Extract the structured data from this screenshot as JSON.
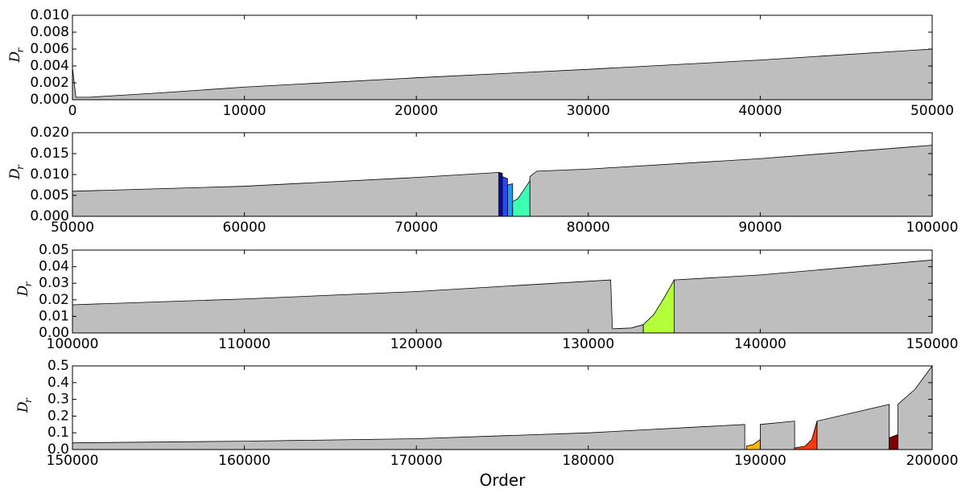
{
  "chart_data": [
    {
      "type": "area",
      "ylabel_main": "D",
      "ylabel_sub": "r",
      "xlim": [
        0,
        50000
      ],
      "ylim": [
        0,
        0.01
      ],
      "xticks": [
        0,
        10000,
        20000,
        30000,
        40000,
        50000
      ],
      "yticks": [
        {
          "value": 0,
          "label": "0.000"
        },
        {
          "value": 0.002,
          "label": "0.002"
        },
        {
          "value": 0.004,
          "label": "0.004"
        },
        {
          "value": 0.006,
          "label": "0.006"
        },
        {
          "value": 0.008,
          "label": "0.008"
        },
        {
          "value": 0.01,
          "label": "0.010"
        }
      ],
      "series": [
        {
          "color": "#bebebe",
          "x": [
            0,
            200,
            1000,
            5000,
            10000,
            20000,
            30000,
            40000,
            50000
          ],
          "values": [
            0.0038,
            0.0003,
            0.0003,
            0.0008,
            0.0015,
            0.0026,
            0.0036,
            0.0047,
            0.006
          ]
        }
      ]
    },
    {
      "type": "area",
      "ylabel_main": "D",
      "ylabel_sub": "r",
      "xlim": [
        50000,
        100000
      ],
      "ylim": [
        0,
        0.02
      ],
      "xticks": [
        50000,
        60000,
        70000,
        80000,
        90000,
        100000
      ],
      "yticks": [
        {
          "value": 0,
          "label": "0.000"
        },
        {
          "value": 0.005,
          "label": "0.005"
        },
        {
          "value": 0.01,
          "label": "0.010"
        },
        {
          "value": 0.015,
          "label": "0.015"
        },
        {
          "value": 0.02,
          "label": "0.020"
        }
      ],
      "series": [
        {
          "color": "#bebebe",
          "x": [
            50000,
            60000,
            70000,
            74800,
            75700,
            76600,
            77000,
            80000,
            90000,
            100000
          ],
          "values": [
            0.006,
            0.0072,
            0.0093,
            0.0105,
            null,
            0.0095,
            0.0108,
            0.0113,
            0.0138,
            0.017
          ]
        },
        {
          "color": "#10108a",
          "x": [
            74800,
            75000
          ],
          "values": [
            0.0105,
            0.0103
          ]
        },
        {
          "color": "#2848ff",
          "x": [
            75000,
            75300
          ],
          "values": [
            0.0095,
            0.009
          ]
        },
        {
          "color": "#1e9aff",
          "x": [
            75300,
            75600
          ],
          "values": [
            0.0075,
            0.0078
          ]
        },
        {
          "color": "#3cffb4",
          "x": [
            75600,
            75900,
            76200,
            76600
          ],
          "values": [
            0.0035,
            0.0042,
            0.006,
            0.0085
          ]
        }
      ]
    },
    {
      "type": "area",
      "ylabel_main": "D",
      "ylabel_sub": "r",
      "xlim": [
        100000,
        150000
      ],
      "ylim": [
        0,
        0.05
      ],
      "xticks": [
        100000,
        110000,
        120000,
        130000,
        140000,
        150000
      ],
      "yticks": [
        {
          "value": 0,
          "label": "0.00"
        },
        {
          "value": 0.01,
          "label": "0.01"
        },
        {
          "value": 0.02,
          "label": "0.02"
        },
        {
          "value": 0.03,
          "label": "0.03"
        },
        {
          "value": 0.04,
          "label": "0.04"
        },
        {
          "value": 0.05,
          "label": "0.05"
        }
      ],
      "series": [
        {
          "color": "#bebebe",
          "x": [
            100000,
            110000,
            120000,
            131300,
            131400,
            132500,
            133200,
            134000,
            135000,
            140000,
            150000
          ],
          "values": [
            0.017,
            0.0205,
            0.025,
            0.032,
            0.0025,
            0.003,
            0.005,
            null,
            0.032,
            0.035,
            0.044
          ]
        },
        {
          "color": "#b4ff3c",
          "x": [
            133200,
            133800,
            134400,
            135000
          ],
          "values": [
            0.005,
            0.011,
            0.021,
            0.032
          ]
        }
      ]
    },
    {
      "type": "area",
      "ylabel_main": "D",
      "ylabel_sub": "r",
      "xlabel": "Order",
      "xlim": [
        150000,
        200000
      ],
      "ylim": [
        0,
        0.5
      ],
      "xticks": [
        150000,
        160000,
        170000,
        180000,
        190000,
        200000
      ],
      "yticks": [
        {
          "value": 0,
          "label": "0.0"
        },
        0.1,
        0.2,
        0.3,
        0.4,
        0.5
      ],
      "series": [
        {
          "color": "#bebebe",
          "x": [
            150000,
            160000,
            170000,
            180000,
            189100,
            189600,
            190000,
            192000,
            192700,
            193300,
            197500,
            197700,
            198000,
            199000,
            200000
          ],
          "values": [
            0.04,
            0.05,
            0.065,
            0.1,
            0.15,
            null,
            0.15,
            0.17,
            null,
            0.17,
            0.27,
            null,
            0.27,
            0.36,
            0.5
          ]
        },
        {
          "color": "#ffb400",
          "x": [
            189200,
            189600,
            190000
          ],
          "values": [
            0.02,
            0.03,
            0.06
          ]
        },
        {
          "color": "#ff3a0a",
          "x": [
            192000,
            192600,
            193000,
            193300
          ],
          "values": [
            0.01,
            0.02,
            0.06,
            0.17
          ]
        },
        {
          "color": "#800000",
          "x": [
            197500,
            198000
          ],
          "values": [
            0.07,
            0.09
          ]
        }
      ]
    }
  ]
}
